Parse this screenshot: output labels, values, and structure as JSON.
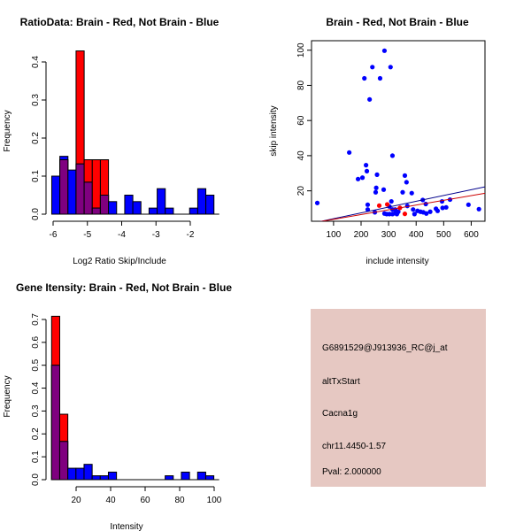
{
  "chart_data": [
    {
      "type": "bar",
      "id": "ratio_hist",
      "title": "RatioData: Brain - Red, Not Brain - Blue",
      "xlabel": "Log2 Ratio Skip/Include",
      "ylabel": "Frequency",
      "bin_start": -6.04,
      "bin_width": 0.2365,
      "xticks": [
        -6,
        -5,
        -4,
        -3,
        -2
      ],
      "yticks": [
        0.0,
        0.1,
        0.2,
        0.3,
        0.4
      ],
      "ytick_labels": [
        "0.0",
        "0.1",
        "0.2",
        "0.3",
        "0.4"
      ],
      "series": [
        {
          "name": "Not Brain",
          "color": "#0000ff",
          "values": [
            0.1,
            0.152,
            0.116,
            0.132,
            0.084,
            0.016,
            0.05,
            0.033,
            0,
            0.05,
            0.033,
            0,
            0.016,
            0.067,
            0.016,
            0,
            0,
            0.016,
            0.067,
            0.05
          ]
        },
        {
          "name": "Brain",
          "color": "#ff0000",
          "values": [
            0,
            0.143,
            0,
            0.429,
            0.143,
            0.143,
            0.143,
            0,
            0,
            0,
            0,
            0,
            0,
            0,
            0,
            0,
            0,
            0,
            0,
            0
          ]
        }
      ],
      "overlap_color": "#7f007f"
    },
    {
      "type": "scatter",
      "id": "intensity_scatter",
      "title": "Brain - Red, Not Brain - Blue",
      "xlabel": "include intensity",
      "ylabel": "skip intensity",
      "xlim": [
        20,
        650
      ],
      "ylim": [
        2.7,
        105.4
      ],
      "xticks": [
        100,
        200,
        300,
        400,
        500,
        600
      ],
      "yticks": [
        20,
        40,
        60,
        80,
        100
      ],
      "series": [
        {
          "name": "Not Brain",
          "color": "#0000ff",
          "points": [
            [
              41,
              13.1
            ],
            [
              157,
              41.8
            ],
            [
              212,
              84
            ],
            [
              241,
              90.4
            ],
            [
              231,
              72
            ],
            [
              269,
              84
            ],
            [
              285,
              99.7
            ],
            [
              307,
              90.4
            ],
            [
              314,
              40
            ],
            [
              218,
              34.6
            ],
            [
              221,
              31.2
            ],
            [
              189,
              26.7
            ],
            [
              205,
              27.5
            ],
            [
              258,
              29.2
            ],
            [
              255,
              21.7
            ],
            [
              253,
              19.2
            ],
            [
              282,
              20.7
            ],
            [
              359,
              28.7
            ],
            [
              365,
              24.9
            ],
            [
              351,
              19.2
            ],
            [
              384,
              18.7
            ],
            [
              224,
              12.1
            ],
            [
              224,
              9.4
            ],
            [
              310,
              14
            ],
            [
              424,
              14.8
            ],
            [
              435,
              12.5
            ],
            [
              368,
              11.4
            ],
            [
              496,
              10.3
            ],
            [
              509,
              10.6
            ],
            [
              494,
              14
            ],
            [
              523,
              15
            ],
            [
              590,
              12.1
            ],
            [
              628,
              9.6
            ],
            [
              472,
              9.8
            ],
            [
              478,
              8.6
            ],
            [
              250,
              7.8
            ],
            [
              285,
              7.1
            ],
            [
              303,
              11.1
            ],
            [
              314,
              9.4
            ],
            [
              293,
              6.8
            ],
            [
              303,
              6.8
            ],
            [
              314,
              6.8
            ],
            [
              324,
              7.3
            ],
            [
              330,
              6.8
            ],
            [
              335,
              8.1
            ],
            [
              389,
              9.4
            ],
            [
              394,
              6.8
            ],
            [
              405,
              8.6
            ],
            [
              416,
              8.1
            ],
            [
              426,
              7.8
            ],
            [
              437,
              7.1
            ],
            [
              451,
              8.1
            ],
            [
              324,
              9.4
            ]
          ]
        },
        {
          "name": "Brain",
          "color": "#ff0000",
          "points": [
            [
              266,
              11.6
            ],
            [
              295,
              12.3
            ],
            [
              341,
              10.3
            ],
            [
              359,
              6.9
            ]
          ]
        }
      ],
      "fit_lines": [
        {
          "name": "Not Brain fit",
          "color": "#00008b",
          "intercept": 0.85,
          "slope": 0.033
        },
        {
          "name": "Brain fit",
          "color": "#cc0000",
          "intercept": 1.1,
          "slope": 0.027
        }
      ]
    },
    {
      "type": "bar",
      "id": "gene_hist",
      "title": "Gene Itensity: Brain - Red, Not Brain - Blue",
      "xlabel": "Intensity",
      "ylabel": "Frequency",
      "bin_start": 5.8,
      "bin_width": 4.7,
      "xticks": [
        20,
        40,
        60,
        80,
        100
      ],
      "yticks": [
        0.0,
        0.1,
        0.2,
        0.3,
        0.4,
        0.5,
        0.6,
        0.7
      ],
      "ytick_labels": [
        "0.0",
        "0.1",
        "0.2",
        "0.3",
        "0.4",
        "0.5",
        "0.6",
        "0.7"
      ],
      "series": [
        {
          "name": "Not Brain",
          "color": "#0000ff",
          "values": [
            0.5,
            0.167,
            0.05,
            0.05,
            0.067,
            0.017,
            0.017,
            0.033,
            0,
            0,
            0,
            0,
            0,
            0,
            0.017,
            0,
            0.033,
            0,
            0.033,
            0.017
          ]
        },
        {
          "name": "Brain",
          "color": "#ff0000",
          "values": [
            0.714,
            0.286,
            0,
            0,
            0,
            0,
            0,
            0,
            0,
            0,
            0,
            0,
            0,
            0,
            0,
            0,
            0,
            0,
            0,
            0
          ]
        }
      ],
      "overlap_color": "#7f007f"
    }
  ],
  "info_panel": {
    "background": "#e6c8c2",
    "probe_id": "G6891529@J913936_RC@j_at",
    "event_type": "altTxStart",
    "gene": "Cacna1g",
    "location": "chr11.4450-1.57",
    "pval": "Pval: 2.000000",
    "pval_color": "#aa0000"
  }
}
